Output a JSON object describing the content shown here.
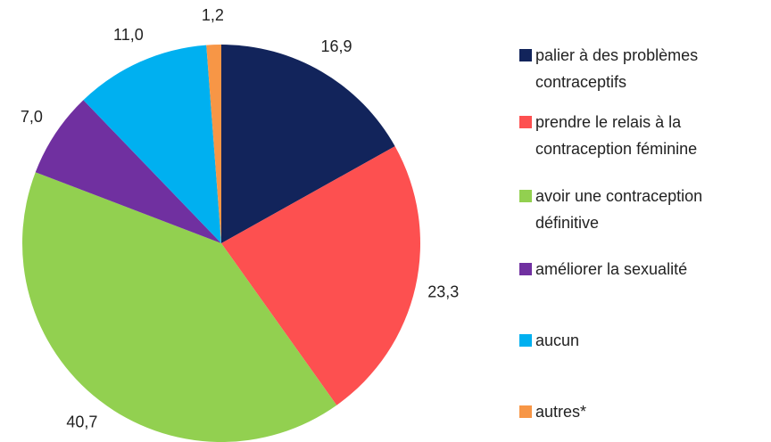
{
  "chart_data": {
    "type": "pie",
    "categories": [
      "palier à des problèmes contraceptifs",
      "prendre le relais à la contraception féminine",
      "avoir une contraception définitive",
      "améliorer  la sexualité",
      "aucun",
      "autres*"
    ],
    "values": [
      16.9,
      23.3,
      40.7,
      7.0,
      11.0,
      1.2
    ],
    "value_labels": [
      "16,9",
      "23,3",
      "40,7",
      "7,0",
      "11,0",
      "1,2"
    ],
    "colors": [
      "#12245b",
      "#fd5050",
      "#92d050",
      "#7030a0",
      "#00b0f0",
      "#f79646"
    ],
    "legend": "right"
  }
}
